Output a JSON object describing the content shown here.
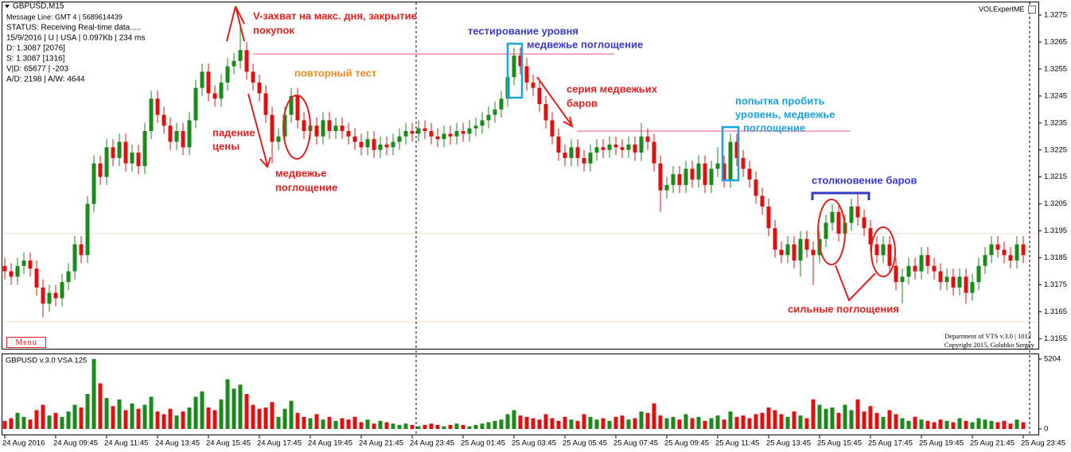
{
  "info": [
    "GBPUSD,M15",
    "Message Line: GMT 4 | 5689614439",
    "STATUS:  Receiving Real-time data.....",
    "15/9/2016 | U | USA | 0.097Kb | 234 ms",
    "D: 1.3087  [2076]",
    "S: 1.3087  [1316]",
    "V|D: 65677 | -203",
    "A/D: 2198 | A/W: 4644"
  ],
  "expert": "VOLExpertME",
  "menu": "Menu",
  "footer": [
    "Department of VTS  v.3.0 | 1012",
    "Copyright 2015, Golubko Sergey"
  ],
  "annotations": [
    "V-захват на макс. дня, закрытие",
    "покупок",
    "падение",
    "цены",
    "медвежье",
    "поглощение",
    "повторный тест",
    "тестирование уровня",
    "медвежье поглощение",
    "серия медвежьих",
    "баров",
    "попытка пробить",
    "уровень, медвежье",
    "поглощение",
    "столкновение баров",
    "сильные поглощения"
  ],
  "chart_data": [
    {
      "type": "candlestick",
      "title": "GBPUSD,M15",
      "up_color": "#1a8a1a",
      "down_color": "#e01010",
      "ylim": [
        1.3151,
        1.328
      ],
      "yticks": [
        1.3275,
        1.3265,
        1.3255,
        1.3245,
        1.3235,
        1.3225,
        1.3215,
        1.3205,
        1.3195,
        1.3185,
        1.3175,
        1.3165,
        1.3155
      ],
      "categories": [
        "24 Aug 2016",
        null,
        null,
        null,
        null,
        null,
        null,
        null,
        "24 Aug 09:45",
        null,
        null,
        null,
        null,
        null,
        null,
        null,
        "24 Aug 11:45",
        null,
        null,
        null,
        null,
        null,
        null,
        null,
        "24 Aug 13:45",
        null,
        null,
        null,
        null,
        null,
        null,
        null,
        "24 Aug 15:45",
        null,
        null,
        null,
        null,
        null,
        null,
        null,
        "24 Aug 17:45",
        null,
        null,
        null,
        null,
        null,
        null,
        null,
        "24 Aug 19:45",
        null,
        null,
        null,
        null,
        null,
        null,
        null,
        "24 Aug 21:45",
        null,
        null,
        null,
        null,
        null,
        null,
        null,
        "24 Aug 23:45",
        null,
        null,
        null,
        null,
        null,
        null,
        null,
        "25 Aug 01:45",
        null,
        null,
        null,
        null,
        null,
        null,
        null,
        "25 Aug 03:45",
        null,
        null,
        null,
        null,
        null,
        null,
        null,
        "25 Aug 05:45",
        null,
        null,
        null,
        null,
        null,
        null,
        null,
        "25 Aug 07:45",
        null,
        null,
        null,
        null,
        null,
        null,
        null,
        "25 Aug 09:45",
        null,
        null,
        null,
        null,
        null,
        null,
        null,
        "25 Aug 11:45",
        null,
        null,
        null,
        null,
        null,
        null,
        null,
        "25 Aug 13:45",
        null,
        null,
        null,
        null,
        null,
        null,
        null,
        "25 Aug 15:45",
        null,
        null,
        null,
        null,
        null,
        null,
        null,
        "25 Aug 17:45",
        null,
        null,
        null,
        null,
        null,
        null,
        null,
        "25 Aug 19:45",
        null,
        null,
        null,
        null,
        null,
        null,
        null,
        "25 Aug 21:45",
        null,
        null,
        null,
        null,
        null,
        null,
        null,
        "25 Aug 23:45"
      ],
      "open": [
        1.3182,
        1.318,
        1.3178,
        1.3182,
        1.3184,
        1.3181,
        1.3174,
        1.3168,
        1.3172,
        1.317,
        1.3176,
        1.318,
        1.319,
        1.3186,
        1.3205,
        1.322,
        1.3215,
        1.3226,
        1.3222,
        1.3228,
        1.322,
        1.3224,
        1.3219,
        1.3232,
        1.3244,
        1.3238,
        1.3234,
        1.3228,
        1.3232,
        1.3226,
        1.3236,
        1.3248,
        1.3254,
        1.3246,
        1.3244,
        1.325,
        1.3256,
        1.3258,
        1.3262,
        1.3254,
        1.325,
        1.3246,
        1.3238,
        1.3228,
        1.323,
        1.3238,
        1.3245,
        1.3236,
        1.3232,
        1.3234,
        1.323,
        1.3236,
        1.3232,
        1.3234,
        1.3232,
        1.323,
        1.3228,
        1.3226,
        1.3229,
        1.3225,
        1.3227,
        1.3226,
        1.3228,
        1.323,
        1.3232,
        1.3231,
        1.3233,
        1.3232,
        1.323,
        1.3229,
        1.3231,
        1.323,
        1.3232,
        1.3231,
        1.3233,
        1.3234,
        1.3236,
        1.3238,
        1.324,
        1.3244,
        1.3252,
        1.326,
        1.3256,
        1.325,
        1.3248,
        1.3242,
        1.3236,
        1.323,
        1.3224,
        1.3222,
        1.3226,
        1.3222,
        1.322,
        1.3224,
        1.3226,
        1.3225,
        1.3227,
        1.3226,
        1.3225,
        1.3227,
        1.3224,
        1.323,
        1.3228,
        1.322,
        1.321,
        1.3212,
        1.3216,
        1.3212,
        1.3218,
        1.3214,
        1.322,
        1.3212,
        1.3218,
        1.322,
        1.3214,
        1.3228,
        1.3222,
        1.3218,
        1.3214,
        1.3208,
        1.3204,
        1.3196,
        1.3188,
        1.3186,
        1.319,
        1.3184,
        1.3192,
        1.3188,
        1.3186,
        1.3192,
        1.3198,
        1.3202,
        1.3194,
        1.3198,
        1.3204,
        1.32,
        1.3196,
        1.319,
        1.3186,
        1.319,
        1.3182,
        1.3176,
        1.3178,
        1.3182,
        1.318,
        1.3186,
        1.3182,
        1.318,
        1.3176,
        1.3178,
        1.3174,
        1.3178,
        1.3172,
        1.3176,
        1.3182,
        1.3186,
        1.319,
        1.3188,
        1.3186,
        1.3184,
        1.319
      ],
      "high": [
        1.3185,
        1.3183,
        1.3185,
        1.3187,
        1.3187,
        1.3184,
        1.3177,
        1.3175,
        1.3175,
        1.3179,
        1.3183,
        1.3193,
        1.3193,
        1.3208,
        1.3223,
        1.3223,
        1.3229,
        1.3229,
        1.3231,
        1.3231,
        1.3227,
        1.3227,
        1.3235,
        1.3247,
        1.3247,
        1.3241,
        1.3237,
        1.3235,
        1.3235,
        1.3239,
        1.3251,
        1.3257,
        1.3257,
        1.3249,
        1.3253,
        1.3259,
        1.3261,
        1.3272,
        1.3265,
        1.3257,
        1.3253,
        1.3249,
        1.3241,
        1.3233,
        1.3241,
        1.3248,
        1.3248,
        1.3239,
        1.3237,
        1.3237,
        1.3239,
        1.3239,
        1.3237,
        1.3237,
        1.3235,
        1.3233,
        1.3231,
        1.3232,
        1.3232,
        1.323,
        1.323,
        1.3231,
        1.3233,
        1.3235,
        1.3235,
        1.3236,
        1.3236,
        1.3235,
        1.3233,
        1.3234,
        1.3234,
        1.3235,
        1.3235,
        1.3236,
        1.3237,
        1.3239,
        1.3241,
        1.3243,
        1.3247,
        1.3255,
        1.3263,
        1.3263,
        1.3259,
        1.3253,
        1.3251,
        1.3245,
        1.3239,
        1.3233,
        1.3227,
        1.3229,
        1.3229,
        1.3225,
        1.3227,
        1.3229,
        1.3229,
        1.323,
        1.323,
        1.3229,
        1.323,
        1.323,
        1.3235,
        1.3233,
        1.3231,
        1.3223,
        1.3215,
        1.3219,
        1.3219,
        1.3221,
        1.3221,
        1.3223,
        1.3223,
        1.3221,
        1.3226,
        1.3223,
        1.3231,
        1.3231,
        1.3225,
        1.3221,
        1.3217,
        1.3211,
        1.3207,
        1.3199,
        1.3191,
        1.3193,
        1.3193,
        1.3195,
        1.3195,
        1.3191,
        1.3195,
        1.3201,
        1.3205,
        1.3205,
        1.3201,
        1.3207,
        1.3209,
        1.3203,
        1.3199,
        1.3193,
        1.3193,
        1.3193,
        1.3185,
        1.3181,
        1.3185,
        1.3185,
        1.3189,
        1.3189,
        1.3185,
        1.3183,
        1.3181,
        1.3181,
        1.3181,
        1.3181,
        1.3179,
        1.3185,
        1.3189,
        1.3193,
        1.3193,
        1.3191,
        1.3189,
        1.3193,
        1.3193
      ],
      "low": [
        1.3177,
        1.3175,
        1.3175,
        1.3179,
        1.3178,
        1.3171,
        1.3163,
        1.3165,
        1.3167,
        1.3167,
        1.3173,
        1.3177,
        1.3183,
        1.3183,
        1.3202,
        1.3212,
        1.3212,
        1.3219,
        1.3219,
        1.3217,
        1.3217,
        1.3216,
        1.3216,
        1.3229,
        1.3235,
        1.3231,
        1.3225,
        1.3225,
        1.3223,
        1.3223,
        1.3233,
        1.3245,
        1.3243,
        1.3241,
        1.3241,
        1.3247,
        1.3253,
        1.3255,
        1.3251,
        1.3247,
        1.3243,
        1.3235,
        1.322,
        1.3225,
        1.3227,
        1.3235,
        1.3233,
        1.3229,
        1.3229,
        1.3227,
        1.3227,
        1.3229,
        1.3229,
        1.3229,
        1.3227,
        1.3225,
        1.3223,
        1.3223,
        1.3222,
        1.3222,
        1.3223,
        1.3223,
        1.3225,
        1.3227,
        1.3228,
        1.3228,
        1.3229,
        1.3227,
        1.3226,
        1.3226,
        1.3227,
        1.3227,
        1.3228,
        1.3228,
        1.323,
        1.3231,
        1.3233,
        1.3235,
        1.3237,
        1.3241,
        1.3249,
        1.3253,
        1.3247,
        1.3245,
        1.3239,
        1.3233,
        1.3227,
        1.3221,
        1.3219,
        1.3219,
        1.3219,
        1.3217,
        1.3217,
        1.3221,
        1.3222,
        1.3222,
        1.3223,
        1.3222,
        1.3222,
        1.3221,
        1.3221,
        1.3225,
        1.3217,
        1.3202,
        1.3207,
        1.3209,
        1.3209,
        1.3209,
        1.3211,
        1.3211,
        1.3209,
        1.3209,
        1.3215,
        1.3211,
        1.3211,
        1.3219,
        1.3215,
        1.3211,
        1.3205,
        1.3201,
        1.3193,
        1.3185,
        1.3183,
        1.3183,
        1.3181,
        1.3178,
        1.3185,
        1.3175,
        1.3183,
        1.3189,
        1.3195,
        1.3191,
        1.3191,
        1.3195,
        1.3197,
        1.3193,
        1.3187,
        1.3183,
        1.3183,
        1.3179,
        1.3173,
        1.3168,
        1.3175,
        1.3177,
        1.3177,
        1.3179,
        1.3177,
        1.3173,
        1.3173,
        1.3171,
        1.3171,
        1.3168,
        1.3169,
        1.3173,
        1.3179,
        1.3183,
        1.3185,
        1.3183,
        1.3181,
        1.3181,
        1.3183
      ],
      "close": [
        1.318,
        1.3178,
        1.3182,
        1.3184,
        1.3181,
        1.3174,
        1.3168,
        1.3172,
        1.317,
        1.3176,
        1.318,
        1.319,
        1.3186,
        1.3205,
        1.322,
        1.3215,
        1.3226,
        1.3222,
        1.3228,
        1.322,
        1.3224,
        1.3219,
        1.3232,
        1.3244,
        1.3238,
        1.3234,
        1.3228,
        1.3232,
        1.3226,
        1.3236,
        1.3248,
        1.3254,
        1.3246,
        1.3244,
        1.325,
        1.3256,
        1.3258,
        1.3262,
        1.3254,
        1.325,
        1.3246,
        1.3238,
        1.3228,
        1.323,
        1.3238,
        1.3245,
        1.3236,
        1.3232,
        1.3234,
        1.323,
        1.3236,
        1.3232,
        1.3234,
        1.3232,
        1.323,
        1.3228,
        1.3226,
        1.3229,
        1.3225,
        1.3227,
        1.3226,
        1.3228,
        1.323,
        1.3232,
        1.3231,
        1.3233,
        1.3232,
        1.323,
        1.3229,
        1.3231,
        1.323,
        1.3232,
        1.3231,
        1.3233,
        1.3234,
        1.3236,
        1.3238,
        1.324,
        1.3244,
        1.3252,
        1.326,
        1.3256,
        1.325,
        1.3248,
        1.3242,
        1.3236,
        1.323,
        1.3224,
        1.3222,
        1.3226,
        1.3222,
        1.322,
        1.3224,
        1.3226,
        1.3225,
        1.3227,
        1.3226,
        1.3225,
        1.3227,
        1.3224,
        1.323,
        1.3228,
        1.322,
        1.321,
        1.3212,
        1.3216,
        1.3212,
        1.3218,
        1.3214,
        1.322,
        1.3212,
        1.3218,
        1.322,
        1.3214,
        1.3228,
        1.3222,
        1.3218,
        1.3214,
        1.3208,
        1.3204,
        1.3196,
        1.3188,
        1.3186,
        1.319,
        1.3184,
        1.3192,
        1.3188,
        1.3186,
        1.3192,
        1.3198,
        1.3202,
        1.3194,
        1.3198,
        1.3204,
        1.32,
        1.3196,
        1.319,
        1.3186,
        1.319,
        1.3182,
        1.3176,
        1.3178,
        1.3182,
        1.318,
        1.3186,
        1.3182,
        1.318,
        1.3176,
        1.3178,
        1.3174,
        1.3178,
        1.3172,
        1.3176,
        1.3182,
        1.3186,
        1.319,
        1.3188,
        1.3186,
        1.3184,
        1.319,
        1.3186
      ]
    },
    {
      "type": "bar",
      "title": "GBPUSD v.3.0 VSA 125",
      "ylim": [
        0,
        5204
      ],
      "yticks": [
        5204,
        0
      ],
      "values": [
        600,
        800,
        1200,
        900,
        700,
        1400,
        1800,
        1000,
        1200,
        900,
        1300,
        1800,
        1600,
        2600,
        5204,
        3400,
        2300,
        1700,
        2200,
        1400,
        1900,
        1500,
        1800,
        2400,
        1300,
        1100,
        1500,
        1000,
        1300,
        1600,
        2400,
        2800,
        1600,
        1400,
        2200,
        3700,
        3000,
        3300,
        2600,
        1800,
        1500,
        1600,
        2000,
        900,
        1500,
        2100,
        1200,
        900,
        800,
        1100,
        700,
        900,
        600,
        800,
        700,
        900,
        500,
        700,
        400,
        600,
        500,
        400,
        300,
        400,
        300,
        200,
        300,
        400,
        300,
        200,
        300,
        400,
        300,
        200,
        300,
        400,
        500,
        600,
        700,
        1100,
        1400,
        1000,
        900,
        800,
        700,
        1100,
        800,
        600,
        900,
        700,
        600,
        1100,
        900,
        700,
        800,
        600,
        900,
        1000,
        700,
        800,
        1300,
        1200,
        1900,
        1000,
        800,
        900,
        700,
        1100,
        800,
        900,
        600,
        800,
        1000,
        700,
        1300,
        900,
        1000,
        800,
        1100,
        1200,
        1600,
        1400,
        1100,
        900,
        1300,
        1000,
        800,
        2200,
        1800,
        1500,
        1600,
        1200,
        1800,
        1400,
        2200,
        1300,
        1700,
        1200,
        900,
        1400,
        1100,
        800,
        600,
        900,
        700,
        600,
        500,
        700,
        600,
        500,
        800,
        600,
        500,
        800,
        700,
        600,
        500,
        600,
        400,
        700,
        500
      ]
    }
  ]
}
